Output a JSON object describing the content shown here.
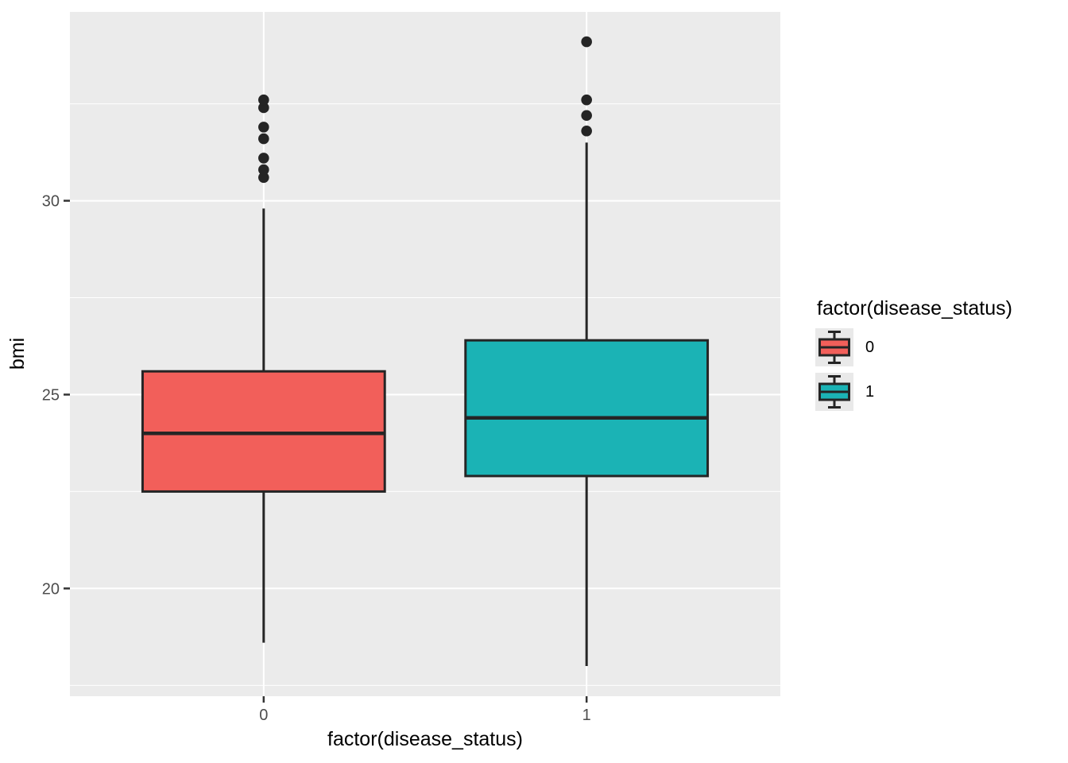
{
  "chart_data": {
    "type": "boxplot",
    "title": "",
    "xlabel": "factor(disease_status)",
    "ylabel": "bmi",
    "categories": [
      "0",
      "1"
    ],
    "y_ticks": [
      20,
      25,
      30
    ],
    "y_minor_gridlines": [
      17.5,
      22.5,
      27.5,
      32.5
    ],
    "ylim": [
      17.22,
      34.87
    ],
    "grid": "on",
    "panel_bg": "#EBEBEB",
    "grid_color": "#FFFFFF",
    "stroke_color": "#252525",
    "tick_label_color": "#4D4D4D",
    "series": [
      {
        "name": "0",
        "fill": "#F25F5A",
        "whisker_low": 18.6,
        "q1": 22.5,
        "median": 24.0,
        "q3": 25.6,
        "whisker_high": 29.8,
        "outliers": [
          30.6,
          30.8,
          31.1,
          31.6,
          31.9,
          32.4,
          32.6
        ]
      },
      {
        "name": "1",
        "fill": "#1BB3B5",
        "whisker_low": 18.0,
        "q1": 22.9,
        "median": 24.4,
        "q3": 26.4,
        "whisker_high": 31.5,
        "outliers": [
          31.8,
          32.2,
          32.6,
          34.1
        ]
      }
    ],
    "legend": {
      "title": "factor(disease_status)",
      "position": "right",
      "entries": [
        {
          "label": "0",
          "fill": "#F25F5A"
        },
        {
          "label": "1",
          "fill": "#1BB3B5"
        }
      ]
    }
  }
}
